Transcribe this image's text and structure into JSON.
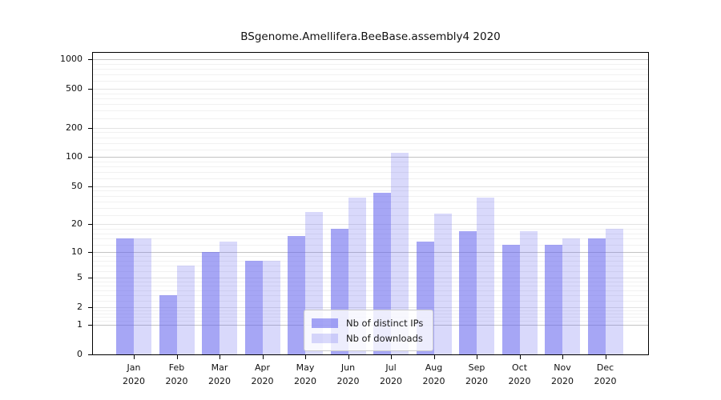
{
  "title": "BSgenome.Amellifera.BeeBase.assembly4 2020",
  "chart_data": {
    "type": "bar",
    "title": "BSgenome.Amellifera.BeeBase.assembly4 2020",
    "months": [
      "Jan",
      "Feb",
      "Mar",
      "Apr",
      "May",
      "Jun",
      "Jul",
      "Aug",
      "Sep",
      "Oct",
      "Nov",
      "Dec"
    ],
    "year": "2020",
    "series": [
      {
        "name": "Nb of distinct IPs",
        "alpha": 0.58,
        "values": [
          14,
          3,
          10,
          8,
          15,
          18,
          43,
          13,
          17,
          12,
          12,
          14
        ]
      },
      {
        "name": "Nb of downloads",
        "alpha": 0.25,
        "values": [
          14,
          7,
          13,
          8,
          27,
          38,
          110,
          26,
          38,
          17,
          14,
          18
        ]
      }
    ],
    "bar_color": "#6666ee",
    "yscale": "log10(1+x)",
    "ylim": [
      0,
      1160
    ],
    "yticks": [
      0,
      1,
      2,
      5,
      10,
      20,
      50,
      100,
      200,
      500,
      1000
    ],
    "major_gridlines": [
      1,
      10,
      100,
      1000
    ],
    "grid_colors": {
      "major": "#c3c3c3",
      "labeled": "#e3e3e3",
      "minor": "#f1f1f1"
    },
    "xlabel": "",
    "ylabel": "",
    "legend_position": "bottom-center-inside"
  }
}
